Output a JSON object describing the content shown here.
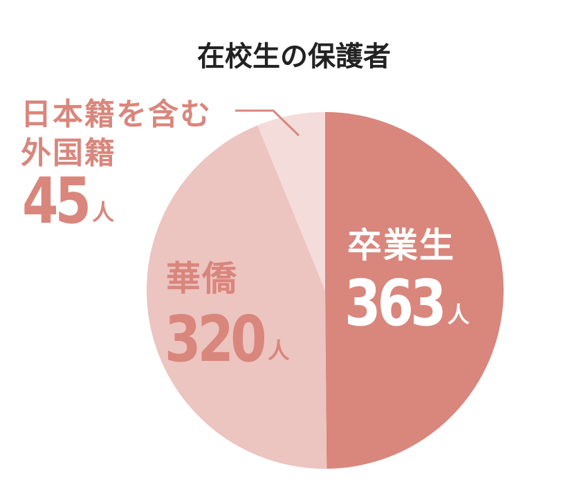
{
  "chart_data": {
    "type": "pie",
    "title": "在校生の保護者",
    "categories": [
      "卒業生",
      "華僑",
      "日本籍を含む外国籍"
    ],
    "values": [
      363,
      320,
      45
    ],
    "colors": [
      "#d9867c",
      "#ecc4c0",
      "#f4dcda"
    ],
    "unit": "人"
  }
}
